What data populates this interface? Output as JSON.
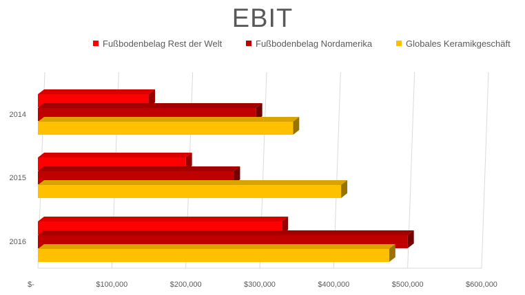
{
  "chart_data": {
    "type": "bar",
    "orientation": "horizontal",
    "title": "EBIT",
    "categories": [
      "2014",
      "2015",
      "2016"
    ],
    "series": [
      {
        "name": "Fußbodenbelag Rest der Welt",
        "color": "#ff0000",
        "values": [
          150000,
          200000,
          330000
        ]
      },
      {
        "name": "Fußbodenbelag Nordamerika",
        "color": "#c00000",
        "values": [
          295000,
          265000,
          500000
        ]
      },
      {
        "name": "Globales Keramikgeschäft",
        "color": "#ffc000",
        "values": [
          345000,
          410000,
          475000
        ]
      }
    ],
    "x_tick_values": [
      0,
      100000,
      200000,
      300000,
      400000,
      500000,
      600000
    ],
    "x_tick_labels": [
      "$-",
      "$100,000",
      "$200,000",
      "$300,000",
      "$400,000",
      "$500,000",
      "$600,000"
    ],
    "xlim": [
      0,
      600000
    ],
    "grid": true,
    "legend_position": "top"
  }
}
